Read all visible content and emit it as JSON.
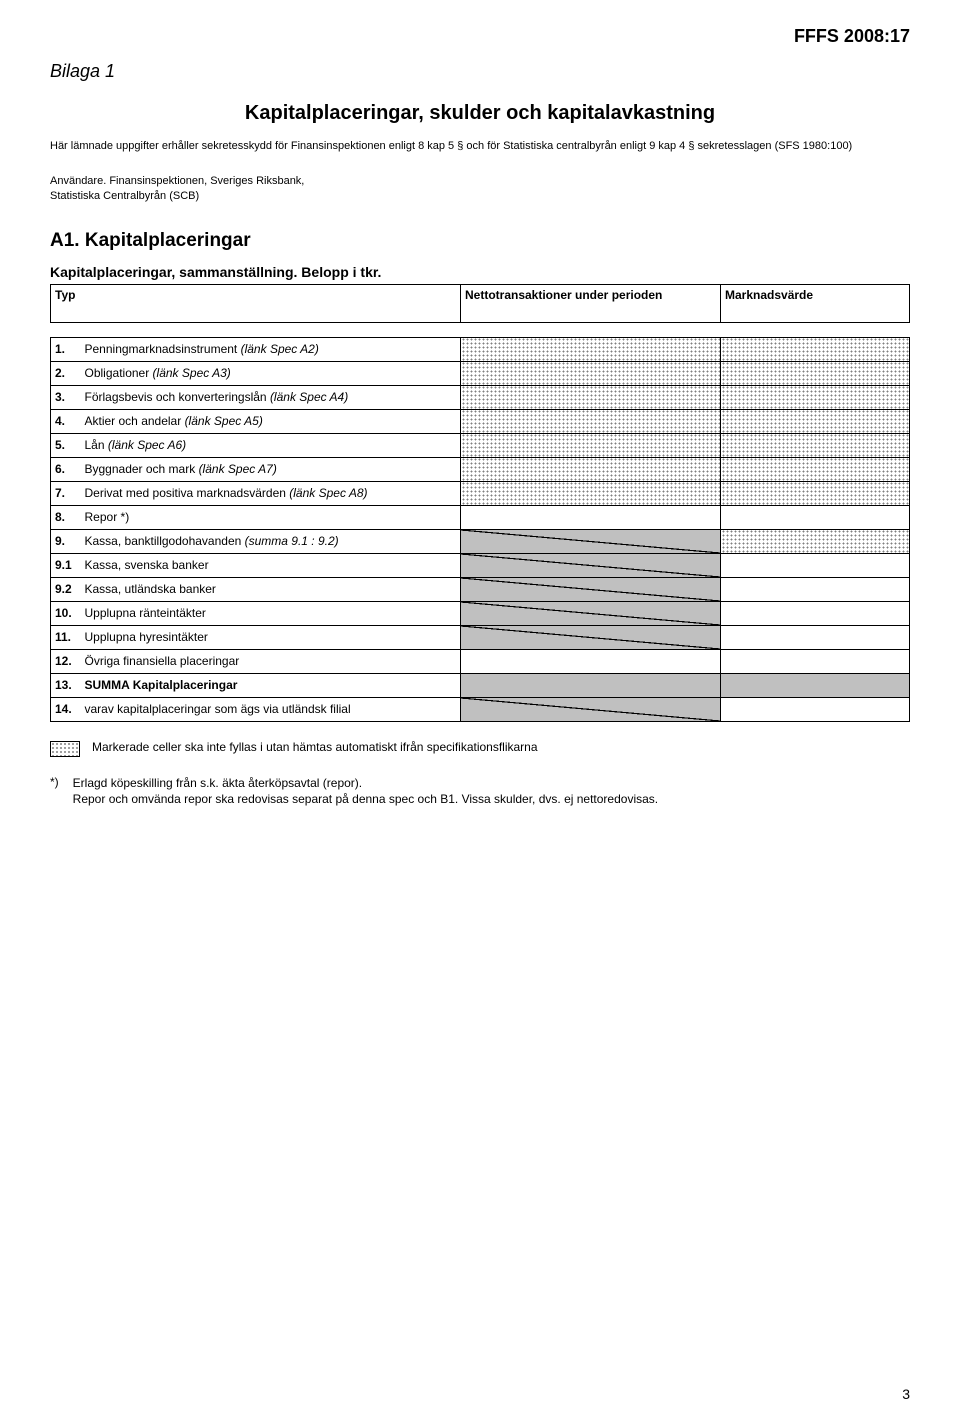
{
  "doc_ref": "FFFS 2008:17",
  "bilaga": "Bilaga 1",
  "title": "Kapitalplaceringar, skulder och kapitalavkastning",
  "intro": "Här lämnade uppgifter erhåller sekretesskydd för Finansinspektionen enligt 8 kap 5 § och för Statistiska centralbyrån enligt 9 kap 4 § sekretesslagen (SFS 1980:100)",
  "users_label": "Användare. Finansinspektionen, Sveriges Riksbank,",
  "users_line2": "Statistiska Centralbyrån (SCB)",
  "section_code": "A1. Kapitalplaceringar",
  "subheading": "Kapitalplaceringar, sammanställning. Belopp i tkr.",
  "columns": {
    "typ": "Typ",
    "netto": "Nettotransaktioner under perioden",
    "mark": "Marknadsvärde"
  },
  "rows": [
    {
      "num": "1.",
      "label": "Penningmarknadsinstrument ",
      "ital": "(länk Spec A2)",
      "net": "dotted",
      "mark": "dotted"
    },
    {
      "num": "2.",
      "label": "Obligationer ",
      "ital": "(länk Spec A3)",
      "net": "dotted",
      "mark": "dotted"
    },
    {
      "num": "3.",
      "label": "Förlagsbevis och konverteringslån ",
      "ital": "(länk Spec A4)",
      "net": "dotted",
      "mark": "dotted"
    },
    {
      "num": "4.",
      "label": "Aktier och andelar ",
      "ital": "(länk Spec A5)",
      "net": "dotted",
      "mark": "dotted"
    },
    {
      "num": "5.",
      "label": "Lån ",
      "ital": "(länk Spec A6)",
      "net": "dotted",
      "mark": "dotted"
    },
    {
      "num": "6.",
      "label": "Byggnader och mark ",
      "ital": "(länk Spec A7)",
      "net": "dotted",
      "mark": "dotted"
    },
    {
      "num": "7.",
      "label": "Derivat med positiva marknadsvärden ",
      "ital": "(länk Spec A8)",
      "net": "dotted",
      "mark": "dotted"
    },
    {
      "num": "8.",
      "label": "Repor *)",
      "ital": "",
      "net": "",
      "mark": ""
    },
    {
      "num": "9.",
      "label": "Kassa, banktillgodohavanden ",
      "ital": "(summa 9.1 : 9.2)",
      "net": "grey-strike",
      "mark": "dotted"
    },
    {
      "num": "9.1",
      "label": "Kassa, svenska banker",
      "ital": "",
      "net": "grey-strike",
      "mark": ""
    },
    {
      "num": "9.2",
      "label": "Kassa, utländska banker",
      "ital": "",
      "net": "grey-strike",
      "mark": ""
    },
    {
      "num": "10.",
      "label": "Upplupna ränteintäkter",
      "ital": "",
      "net": "grey-strike",
      "mark": ""
    },
    {
      "num": "11.",
      "label": "Upplupna hyresintäkter",
      "ital": "",
      "net": "grey-strike",
      "mark": ""
    },
    {
      "num": "12.",
      "label": "Övriga finansiella placeringar",
      "ital": "",
      "net": "",
      "mark": ""
    },
    {
      "num": "13.",
      "label": "SUMMA Kapitalplaceringar",
      "ital": "",
      "bold": true,
      "net": "grey",
      "mark": "grey"
    },
    {
      "num": "14.",
      "label": "varav kapitalplaceringar som ägs via utländsk filial",
      "ital": "",
      "net": "grey-strike",
      "mark": ""
    }
  ],
  "legend_text": "Markerade celler ska inte fyllas i utan hämtas automatiskt ifrån specifikationsflikarna",
  "note_mark": "*)",
  "note_line1": "Erlagd köpeskilling från s.k. äkta återköpsavtal (repor).",
  "note_line2": "Repor och omvända repor ska redovisas separat på denna spec och B1. Vissa skulder, dvs. ej nettoredovisas.",
  "page_number": "3"
}
